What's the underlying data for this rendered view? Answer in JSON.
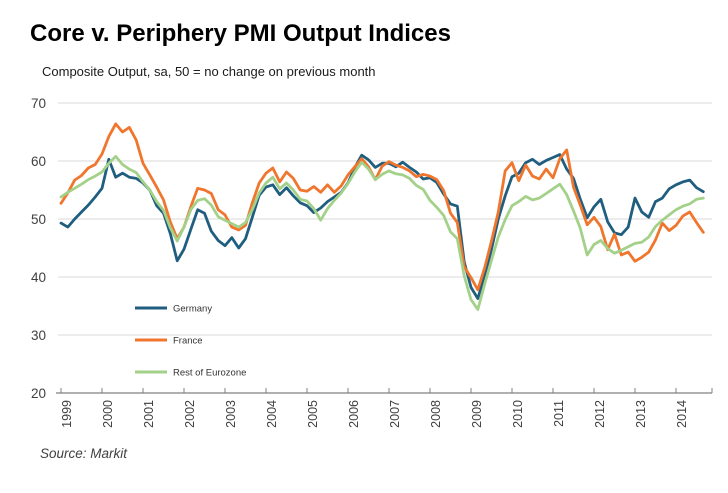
{
  "page": {
    "title": "Core v. Periphery PMI Output Indices",
    "subtitle": "Composite Output,  sa, 50 = no change on previous month",
    "source": "Source: Markit"
  },
  "chart_data": {
    "type": "line",
    "title": "Core v. Periphery PMI Output Indices",
    "subtitle": "Composite Output,  sa, 50 = no change on previous month",
    "source": "Source: Markit",
    "x_start_year": 1999,
    "x_step_years": 0.166667,
    "x_tick_labels": [
      "1999",
      "2000",
      "2001",
      "2002",
      "2003",
      "2004",
      "2005",
      "2006",
      "2007",
      "2008",
      "2009",
      "2010",
      "2011",
      "2012",
      "2013",
      "2014"
    ],
    "y_ticks": [
      20,
      30,
      40,
      50,
      60,
      70
    ],
    "ylim": [
      20,
      70
    ],
    "grid": "horizontal",
    "legend_position": "inside-lower-left",
    "colors": {
      "grid": "#D9D9D9",
      "axis": "#808080",
      "tick_label": "#404040",
      "legend_label": "#333333"
    },
    "series": [
      {
        "name": "Germany",
        "color": "#205E80",
        "values": [
          49.3,
          48.6,
          50.0,
          51.2,
          52.4,
          53.8,
          55.3,
          60.3,
          57.2,
          57.9,
          57.2,
          57.0,
          56.2,
          55.0,
          52.3,
          51.0,
          47.5,
          42.8,
          44.8,
          48.2,
          51.6,
          51.0,
          47.9,
          46.3,
          45.4,
          46.8,
          45.0,
          46.6,
          50.3,
          54.1,
          55.5,
          55.9,
          54.2,
          55.4,
          54.0,
          52.8,
          52.3,
          51.1,
          51.9,
          53.0,
          53.8,
          54.6,
          56.2,
          58.9,
          61.0,
          60.2,
          58.9,
          59.6,
          59.6,
          59.0,
          59.8,
          58.9,
          58.1,
          56.9,
          57.1,
          56.3,
          54.3,
          52.6,
          52.2,
          42.6,
          38.2,
          36.3,
          40.2,
          44.8,
          50.0,
          54.0,
          57.3,
          57.9,
          59.7,
          60.3,
          59.4,
          60.1,
          60.6,
          61.1,
          58.6,
          57.0,
          53.4,
          50.2,
          52.1,
          53.4,
          49.5,
          47.6,
          47.3,
          48.6,
          53.6,
          51.2,
          50.3,
          53.0,
          53.6,
          55.2,
          55.9,
          56.4,
          56.7,
          55.4,
          54.7
        ]
      },
      {
        "name": "France",
        "color": "#F0762E",
        "values": [
          52.7,
          54.5,
          56.7,
          57.5,
          58.8,
          59.4,
          61.2,
          64.2,
          66.4,
          65.0,
          65.8,
          63.6,
          59.6,
          57.6,
          55.5,
          53.3,
          49.5,
          46.6,
          48.6,
          52.1,
          55.3,
          55.0,
          54.4,
          51.6,
          50.7,
          48.6,
          48.1,
          48.9,
          52.8,
          56.2,
          57.9,
          58.8,
          56.4,
          58.1,
          57.0,
          55.0,
          54.8,
          55.6,
          54.6,
          55.9,
          54.6,
          55.7,
          57.6,
          59.0,
          60.4,
          59.0,
          56.8,
          59.1,
          59.9,
          59.3,
          58.9,
          58.3,
          57.3,
          57.7,
          57.4,
          56.8,
          54.9,
          51.0,
          49.4,
          41.8,
          39.9,
          37.8,
          41.6,
          46.2,
          51.2,
          58.3,
          59.7,
          56.6,
          59.3,
          57.4,
          56.9,
          58.6,
          57.1,
          60.4,
          61.9,
          55.5,
          52.4,
          49.0,
          50.3,
          48.7,
          44.7,
          47.4,
          43.8,
          44.3,
          42.7,
          43.4,
          44.3,
          46.4,
          49.3,
          48.0,
          48.9,
          50.5,
          51.2,
          49.4,
          47.7
        ]
      },
      {
        "name": "Rest of Eurozone",
        "color": "#A4D18A",
        "values": [
          53.8,
          54.6,
          55.3,
          56.0,
          56.8,
          57.4,
          58.1,
          59.6,
          60.8,
          59.4,
          58.6,
          58.0,
          56.4,
          55.0,
          53.0,
          51.5,
          48.5,
          46.2,
          48.6,
          51.6,
          53.2,
          53.5,
          52.4,
          50.4,
          49.8,
          49.2,
          48.6,
          49.4,
          51.6,
          54.5,
          56.2,
          57.2,
          55.2,
          56.2,
          55.0,
          53.4,
          53.1,
          51.8,
          49.8,
          51.8,
          53.2,
          54.5,
          56.1,
          58.1,
          59.8,
          58.6,
          56.8,
          57.7,
          58.3,
          57.8,
          57.6,
          57.0,
          55.8,
          55.1,
          53.2,
          52.0,
          50.6,
          47.8,
          46.6,
          40.2,
          36.1,
          34.4,
          38.8,
          42.9,
          46.9,
          49.9,
          52.3,
          53.0,
          53.9,
          53.3,
          53.6,
          54.4,
          55.2,
          56.0,
          54.2,
          51.4,
          48.4,
          43.8,
          45.6,
          46.3,
          44.9,
          44.1,
          44.6,
          45.2,
          45.8,
          46.0,
          46.9,
          48.7,
          49.8,
          50.7,
          51.6,
          52.2,
          52.6,
          53.4,
          53.6
        ]
      }
    ]
  }
}
